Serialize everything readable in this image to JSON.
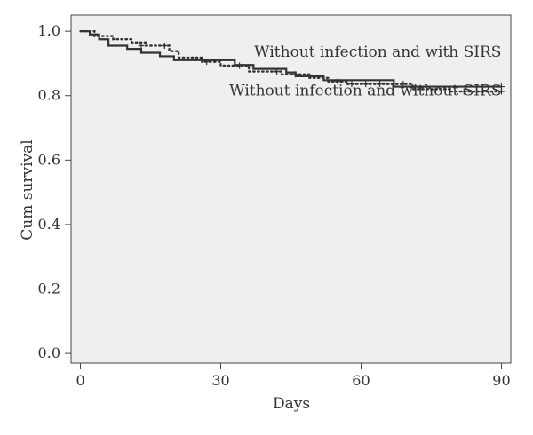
{
  "chart_data": {
    "type": "line",
    "subtype": "kaplan-meier step curves",
    "xlabel": "Days",
    "ylabel": "Cum survival",
    "xlim": [
      -2,
      92
    ],
    "ylim": [
      -0.03,
      1.05
    ],
    "x_ticks": [
      0,
      30,
      60,
      90
    ],
    "x_tick_labels": [
      "0",
      "30",
      "60",
      "90"
    ],
    "y_ticks": [
      0.0,
      0.2,
      0.4,
      0.6,
      0.8,
      1.0
    ],
    "y_tick_labels": [
      "0.0",
      "0.2",
      "0.4",
      "0.6",
      "0.8",
      "1.0"
    ],
    "grid": false,
    "legend": "none",
    "plot_background": "#efefef",
    "series": [
      {
        "style": "solid",
        "color": "#333333",
        "points": [
          [
            0,
            1.0
          ],
          [
            2,
            1.0
          ],
          [
            2,
            0.99
          ],
          [
            4,
            0.99
          ],
          [
            4,
            0.975
          ],
          [
            6,
            0.975
          ],
          [
            6,
            0.955
          ],
          [
            10,
            0.955
          ],
          [
            10,
            0.945
          ],
          [
            13,
            0.945
          ],
          [
            13,
            0.933
          ],
          [
            17,
            0.933
          ],
          [
            17,
            0.922
          ],
          [
            20,
            0.922
          ],
          [
            20,
            0.91
          ],
          [
            33,
            0.91
          ],
          [
            33,
            0.895
          ],
          [
            37,
            0.895
          ],
          [
            37,
            0.883
          ],
          [
            44,
            0.883
          ],
          [
            44,
            0.872
          ],
          [
            46,
            0.872
          ],
          [
            46,
            0.86
          ],
          [
            52,
            0.86
          ],
          [
            52,
            0.848
          ],
          [
            67,
            0.848
          ],
          [
            67,
            0.828
          ],
          [
            90,
            0.828
          ]
        ],
        "censor_marks": [
          [
            90,
            0.828
          ]
        ]
      },
      {
        "style": "dotted",
        "color": "#333333",
        "points": [
          [
            0,
            1.0
          ],
          [
            3,
            1.0
          ],
          [
            3,
            0.985
          ],
          [
            7,
            0.985
          ],
          [
            7,
            0.975
          ],
          [
            11,
            0.975
          ],
          [
            11,
            0.965
          ],
          [
            14,
            0.965
          ],
          [
            14,
            0.955
          ],
          [
            19,
            0.955
          ],
          [
            19,
            0.938
          ],
          [
            21,
            0.938
          ],
          [
            21,
            0.918
          ],
          [
            26,
            0.918
          ],
          [
            26,
            0.905
          ],
          [
            30,
            0.905
          ],
          [
            30,
            0.893
          ],
          [
            36,
            0.893
          ],
          [
            36,
            0.875
          ],
          [
            43,
            0.875
          ],
          [
            43,
            0.866
          ],
          [
            49,
            0.866
          ],
          [
            49,
            0.855
          ],
          [
            53,
            0.855
          ],
          [
            53,
            0.844
          ],
          [
            57,
            0.844
          ],
          [
            57,
            0.836
          ],
          [
            71,
            0.836
          ],
          [
            71,
            0.82
          ],
          [
            79,
            0.82
          ],
          [
            79,
            0.813
          ],
          [
            90,
            0.813
          ]
        ],
        "censor_marks": [
          [
            13,
            0.955
          ],
          [
            18,
            0.955
          ],
          [
            27,
            0.905
          ],
          [
            34,
            0.893
          ],
          [
            42,
            0.875
          ],
          [
            46,
            0.866
          ],
          [
            55,
            0.844
          ],
          [
            58,
            0.836
          ],
          [
            61,
            0.836
          ],
          [
            64,
            0.836
          ],
          [
            69,
            0.836
          ],
          [
            82,
            0.813
          ],
          [
            86,
            0.813
          ],
          [
            90,
            0.813
          ]
        ]
      }
    ],
    "annotations": [
      {
        "text": "Without infection and with SIRS",
        "x": 90,
        "y": 0.92
      },
      {
        "text": "Without infection and without SIRS",
        "x": 90,
        "y": 0.8
      }
    ]
  }
}
